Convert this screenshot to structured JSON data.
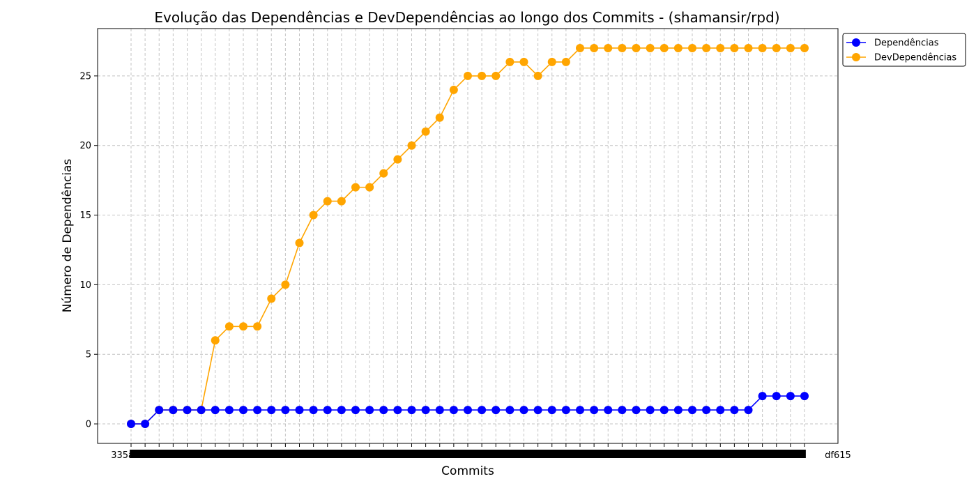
{
  "chart_data": {
    "type": "line",
    "title": "Evolução das Dependências e DevDependências ao longo dos Commits - (shamansir/rpd)",
    "xlabel": "Commits",
    "ylabel": "Número de Dependências",
    "x_tick_first": "335a185",
    "x_tick_last": "df615",
    "ylim": [
      -1.4,
      28.4
    ],
    "yticks": [
      0,
      5,
      10,
      15,
      20,
      25
    ],
    "grid": true,
    "legend_position": "upper-right-outside",
    "series": [
      {
        "name": "Dependências",
        "color": "#0000ff",
        "values": [
          0,
          0,
          1,
          1,
          1,
          1,
          1,
          1,
          1,
          1,
          1,
          1,
          1,
          1,
          1,
          1,
          1,
          1,
          1,
          1,
          1,
          1,
          1,
          1,
          1,
          1,
          1,
          1,
          1,
          1,
          1,
          1,
          1,
          1,
          1,
          1,
          1,
          1,
          1,
          1,
          1,
          1,
          1,
          1,
          1,
          2,
          2,
          2,
          2
        ]
      },
      {
        "name": "DevDependências",
        "color": "#ffa500",
        "values": [
          0,
          0,
          1,
          1,
          1,
          1,
          6,
          7,
          7,
          7,
          9,
          10,
          13,
          15,
          16,
          16,
          17,
          17,
          18,
          19,
          20,
          21,
          22,
          24,
          25,
          25,
          25,
          26,
          26,
          25,
          26,
          26,
          27,
          27,
          27,
          27,
          27,
          27,
          27,
          27,
          27,
          27,
          27,
          27,
          27,
          27,
          27,
          27,
          27
        ]
      }
    ]
  }
}
